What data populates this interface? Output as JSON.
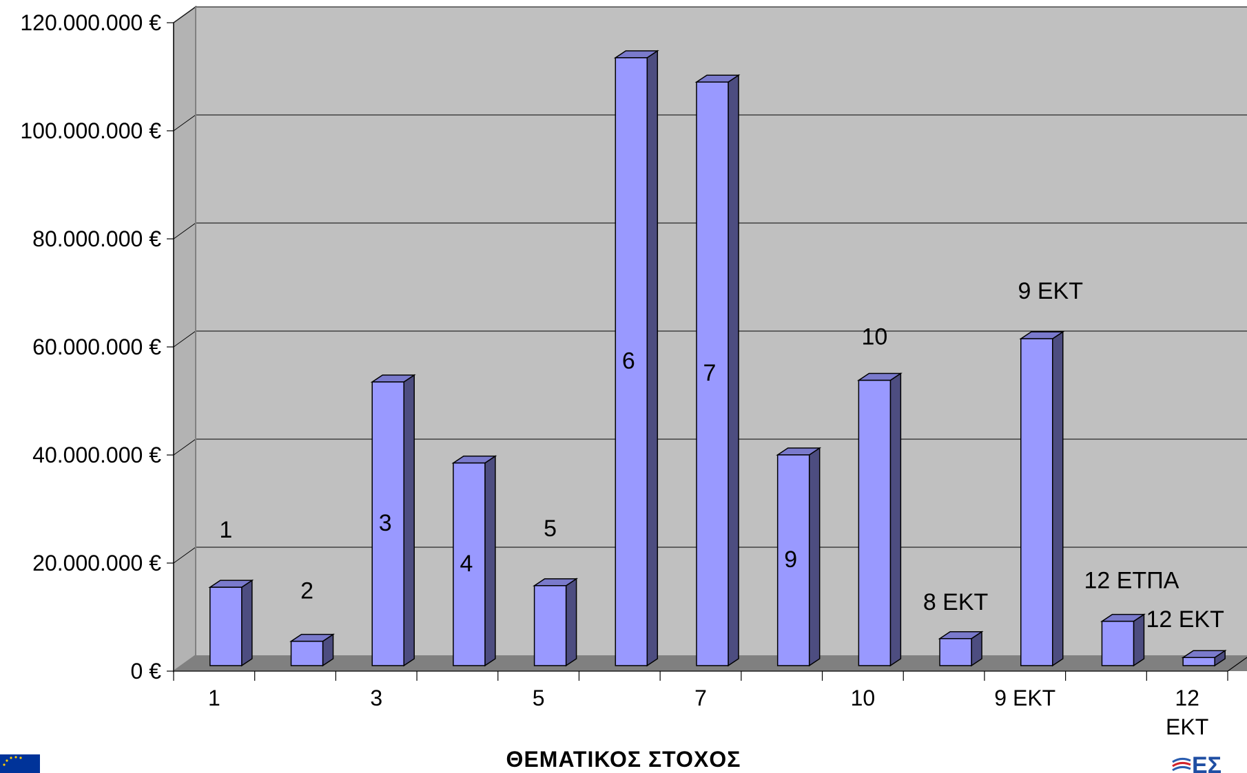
{
  "chart_data": {
    "type": "bar",
    "style": "3d-column",
    "xlabel": "ΘΕΜΑΤΙΚΟΣ ΣΤΟΧΟΣ",
    "ylabel": "",
    "ylim": [
      0,
      120000000
    ],
    "yticks": [
      {
        "value": 0,
        "label": "0 €"
      },
      {
        "value": 20000000,
        "label": "20.000.000 €"
      },
      {
        "value": 40000000,
        "label": "40.000.000 €"
      },
      {
        "value": 60000000,
        "label": "60.000.000 €"
      },
      {
        "value": 80000000,
        "label": "80.000.000 €"
      },
      {
        "value": 100000000,
        "label": "100.000.000 €"
      },
      {
        "value": 120000000,
        "label": "120.000.000 €"
      }
    ],
    "categories": [
      "1",
      "2",
      "3",
      "4",
      "5",
      "6",
      "7",
      "9",
      "10",
      "8 ΕΚΤ",
      "9 ΕΚΤ",
      "12 ΕΤΠΑ",
      "12 ΕΚΤ"
    ],
    "xtick_labels": [
      "1",
      "",
      "3",
      "",
      "5",
      "",
      "7",
      "",
      "10",
      "",
      "9 ΕΚΤ",
      "",
      "12 ΕΚΤ"
    ],
    "values": [
      14500000,
      4500000,
      52500000,
      37500000,
      14800000,
      112500000,
      108000000,
      39000000,
      52800000,
      5000000,
      60500000,
      8200000,
      1500000
    ],
    "data_labels": [
      "1",
      "2",
      "3",
      "4",
      "5",
      "6",
      "7",
      "9",
      "10",
      "8 ΕΚΤ",
      "9 ΕΚΤ",
      "12 ΕΤΠΑ",
      "12 ΕΚΤ"
    ],
    "data_label_inside": [
      false,
      false,
      true,
      true,
      false,
      true,
      true,
      true,
      false,
      false,
      false,
      false,
      false
    ],
    "grid": true,
    "legend": "none",
    "colors": {
      "bar_front": "#9999ff",
      "bar_side": "#4d4d80",
      "bar_top": "#7a7acc",
      "wall": "#c0c0c0",
      "floor": "#808080",
      "gridline": "#000000"
    }
  },
  "logos": {
    "left": "eu-flag-icon",
    "right": "espa-logo-icon"
  }
}
